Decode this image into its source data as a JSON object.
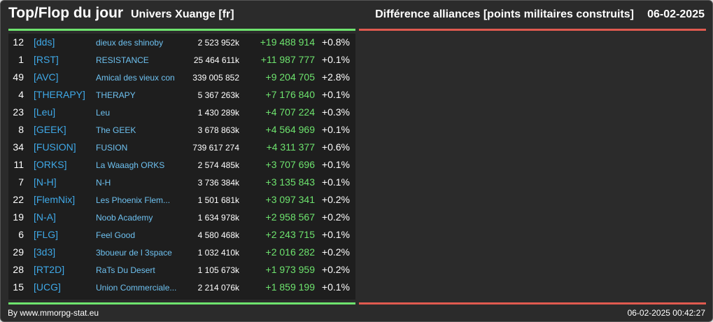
{
  "header": {
    "title": "Top/Flop du jour",
    "universe": "Univers Xuange [fr]",
    "heading": "Différence alliances [points militaires construits]",
    "date": "06-02-2025"
  },
  "colors": {
    "positive": "#6ee46e",
    "negative": "#e05a4f",
    "tag": "#3fa9e8",
    "name": "#6ec1f0"
  },
  "rows": [
    {
      "rank": "12",
      "tag": "[dds]",
      "name": "dieux des shinoby",
      "points": "2 523 952k",
      "diff": "+19 488 914",
      "pct": "+0.8%"
    },
    {
      "rank": "1",
      "tag": "[RST]",
      "name": "RESISTANCE",
      "points": "25 464 611k",
      "diff": "+11 987 777",
      "pct": "+0.1%"
    },
    {
      "rank": "49",
      "tag": "[AVC]",
      "name": "Amical des vieux con",
      "points": "339 005 852",
      "diff": "+9 204 705",
      "pct": "+2.8%"
    },
    {
      "rank": "4",
      "tag": "[THERAPY]",
      "name": "THERAPY",
      "points": "5 367 263k",
      "diff": "+7 176 840",
      "pct": "+0.1%"
    },
    {
      "rank": "23",
      "tag": "[Leu]",
      "name": "Leu",
      "points": "1 430 289k",
      "diff": "+4 707 224",
      "pct": "+0.3%"
    },
    {
      "rank": "8",
      "tag": "[GEEK]",
      "name": "The GEEK",
      "points": "3 678 863k",
      "diff": "+4 564 969",
      "pct": "+0.1%"
    },
    {
      "rank": "34",
      "tag": "[FUSION]",
      "name": "FUSION",
      "points": "739 617 274",
      "diff": "+4 311 377",
      "pct": "+0.6%"
    },
    {
      "rank": "11",
      "tag": "[ORKS]",
      "name": "La Waaagh ORKS",
      "points": "2 574 485k",
      "diff": "+3 707 696",
      "pct": "+0.1%"
    },
    {
      "rank": "7",
      "tag": "[N-H]",
      "name": "N-H",
      "points": "3 736 384k",
      "diff": "+3 135 843",
      "pct": "+0.1%"
    },
    {
      "rank": "22",
      "tag": "[FlemNix]",
      "name": "Les Phoenix Flem...",
      "points": "1 501 681k",
      "diff": "+3 097 341",
      "pct": "+0.2%"
    },
    {
      "rank": "19",
      "tag": "[N-A]",
      "name": "Noob Academy",
      "points": "1 634 978k",
      "diff": "+2 958 567",
      "pct": "+0.2%"
    },
    {
      "rank": "6",
      "tag": "[FLG]",
      "name": "Feel Good",
      "points": "4 580 468k",
      "diff": "+2 243 715",
      "pct": "+0.1%"
    },
    {
      "rank": "29",
      "tag": "[3d3]",
      "name": "3boueur de l 3space",
      "points": "1 032 410k",
      "diff": "+2 016 282",
      "pct": "+0.2%"
    },
    {
      "rank": "28",
      "tag": "[RT2D]",
      "name": "RaTs Du Desert",
      "points": "1 105 673k",
      "diff": "+1 973 959",
      "pct": "+0.2%"
    },
    {
      "rank": "15",
      "tag": "[UCG]",
      "name": "Union Commerciale...",
      "points": "2 214 076k",
      "diff": "+1 859 199",
      "pct": "+0.1%"
    }
  ],
  "footer": {
    "credit": "By www.mmorpg-stat.eu",
    "timestamp": "06-02-2025 00:42:27"
  }
}
